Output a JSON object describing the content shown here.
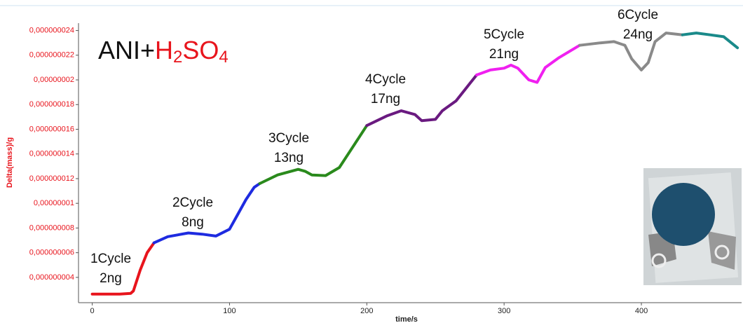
{
  "chart_data": {
    "type": "line",
    "title": [
      "ANI+",
      "H",
      "2",
      "SO",
      "4"
    ],
    "xlabel": "time/s",
    "ylabel": "Delta(mass)/g",
    "xlim": [
      -10,
      473
    ],
    "xticks": [
      0,
      100,
      200,
      300,
      400
    ],
    "ylim": [
      1.95e-09,
      2.46e-08
    ],
    "yticks": [
      {
        "value": 4e-09,
        "label": "0,000000004"
      },
      {
        "value": 6e-09,
        "label": "0,000000006"
      },
      {
        "value": 8e-09,
        "label": "0,000000008"
      },
      {
        "value": 1e-08,
        "label": "0,00000001"
      },
      {
        "value": 1.2e-08,
        "label": "0,000000012"
      },
      {
        "value": 1.4e-08,
        "label": "0,000000014"
      },
      {
        "value": 1.6e-08,
        "label": "0,000000016"
      },
      {
        "value": 1.8e-08,
        "label": "0,000000018"
      },
      {
        "value": 2e-08,
        "label": "0,00000002"
      },
      {
        "value": 2.2e-08,
        "label": "0,000000022"
      },
      {
        "value": 2.4e-08,
        "label": "0,000000024"
      }
    ],
    "series": [
      {
        "color": "#e8141c",
        "x": [
          0,
          10,
          20,
          28,
          30,
          35,
          40,
          45
        ],
        "values": [
          2.64e-09,
          2.64e-09,
          2.64e-09,
          2.7e-09,
          2.9e-09,
          4.6e-09,
          6e-09,
          6.8e-09
        ]
      },
      {
        "color": "#1e2be0",
        "x": [
          45,
          55,
          70,
          80,
          90,
          100,
          105,
          112,
          118,
          122
        ],
        "values": [
          6.8e-09,
          7.3e-09,
          7.6e-09,
          7.5e-09,
          7.35e-09,
          7.9e-09,
          8.9e-09,
          1.03e-08,
          1.13e-08,
          1.16e-08
        ]
      },
      {
        "color": "#2a8a1c",
        "x": [
          122,
          135,
          150,
          155,
          160,
          170,
          180,
          190,
          200
        ],
        "values": [
          1.16e-08,
          1.23e-08,
          1.275e-08,
          1.26e-08,
          1.23e-08,
          1.225e-08,
          1.29e-08,
          1.46e-08,
          1.63e-08
        ]
      },
      {
        "color": "#6a1a80",
        "x": [
          200,
          215,
          225,
          235,
          240,
          250,
          255,
          265,
          275,
          280
        ],
        "values": [
          1.63e-08,
          1.71e-08,
          1.75e-08,
          1.72e-08,
          1.67e-08,
          1.68e-08,
          1.75e-08,
          1.83e-08,
          1.97e-08,
          2.04e-08
        ]
      },
      {
        "color": "#f020f0",
        "x": [
          280,
          290,
          300,
          305,
          310,
          318,
          324,
          330,
          340,
          355
        ],
        "values": [
          2.04e-08,
          2.08e-08,
          2.095e-08,
          2.12e-08,
          2.095e-08,
          2e-08,
          1.98e-08,
          2.1e-08,
          2.18e-08,
          2.28e-08
        ]
      },
      {
        "color": "#8a8a8a",
        "x": [
          355,
          370,
          380,
          388,
          393,
          400,
          405,
          410,
          418,
          430
        ],
        "values": [
          2.28e-08,
          2.3e-08,
          2.31e-08,
          2.28e-08,
          2.17e-08,
          2.08e-08,
          2.14e-08,
          2.31e-08,
          2.38e-08,
          2.365e-08
        ]
      },
      {
        "color": "#1a8a8a",
        "x": [
          430,
          440,
          450,
          460,
          470
        ],
        "values": [
          2.365e-08,
          2.38e-08,
          2.365e-08,
          2.35e-08,
          2.26e-08
        ]
      }
    ],
    "annotations": [
      [
        "1Cycle",
        "2ng"
      ],
      [
        "2Cycle",
        "8ng"
      ],
      [
        "3Cycle",
        "13ng"
      ],
      [
        "4Cycle",
        "17ng"
      ],
      [
        "5Cycle",
        "21ng"
      ],
      [
        "6Cycle",
        "24ng"
      ]
    ]
  }
}
